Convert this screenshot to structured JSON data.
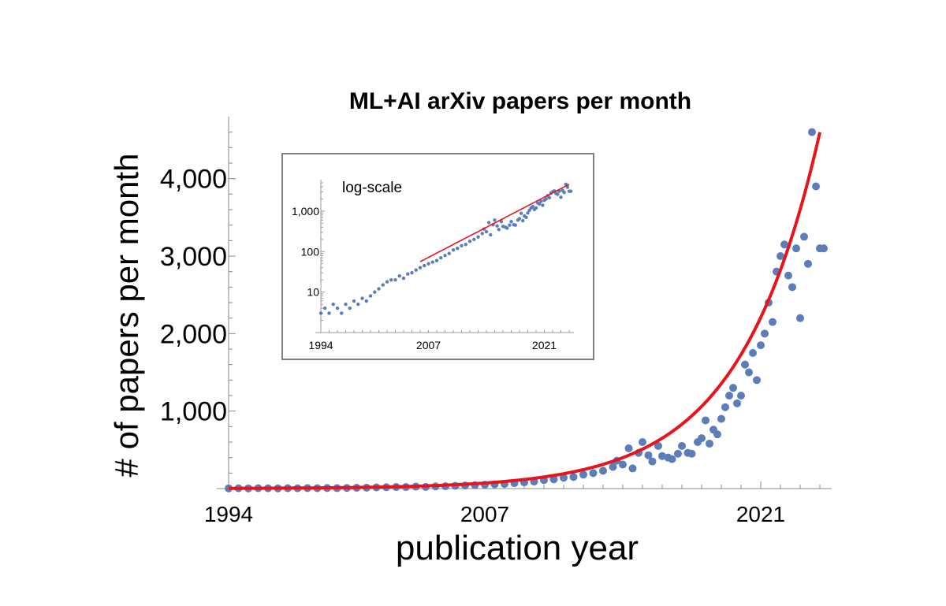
{
  "chart_data": [
    {
      "type": "scatter",
      "title": "ML+AI arXiv papers per month",
      "xlabel": "publication year",
      "ylabel": "# of papers per month",
      "xlim": [
        1994,
        2024
      ],
      "ylim": [
        0,
        4800
      ],
      "x_ticks": [
        {
          "value": 1994,
          "label": "1994"
        },
        {
          "value": 2007,
          "label": "2007"
        },
        {
          "value": 2021,
          "label": "2021"
        }
      ],
      "y_ticks": [
        {
          "value": 1000,
          "label": "1,000"
        },
        {
          "value": 2000,
          "label": "2,000"
        },
        {
          "value": 3000,
          "label": "3,000"
        },
        {
          "value": 4000,
          "label": "4,000"
        }
      ],
      "scale": "linear",
      "series": [
        {
          "name": "monthly papers",
          "color": "#5b7db8",
          "points": [
            [
              1994.0,
              3
            ],
            [
              1994.5,
              4
            ],
            [
              1995.0,
              3
            ],
            [
              1995.5,
              5
            ],
            [
              1996.0,
              4
            ],
            [
              1996.5,
              3
            ],
            [
              1997.0,
              5
            ],
            [
              1997.5,
              4
            ],
            [
              1998.0,
              6
            ],
            [
              1998.5,
              5
            ],
            [
              1999.0,
              7
            ],
            [
              1999.5,
              6
            ],
            [
              2000.0,
              8
            ],
            [
              2000.5,
              10
            ],
            [
              2001.0,
              12
            ],
            [
              2001.5,
              15
            ],
            [
              2002.0,
              18
            ],
            [
              2002.5,
              20
            ],
            [
              2003.0,
              20
            ],
            [
              2003.5,
              25
            ],
            [
              2004.0,
              22
            ],
            [
              2004.5,
              28
            ],
            [
              2005.0,
              30
            ],
            [
              2005.5,
              35
            ],
            [
              2006.0,
              40
            ],
            [
              2006.5,
              45
            ],
            [
              2007.0,
              50
            ],
            [
              2007.5,
              55
            ],
            [
              2008.0,
              60
            ],
            [
              2008.5,
              70
            ],
            [
              2009.0,
              80
            ],
            [
              2009.5,
              90
            ],
            [
              2010.0,
              110
            ],
            [
              2010.5,
              120
            ],
            [
              2011.0,
              140
            ],
            [
              2011.5,
              150
            ],
            [
              2012.0,
              180
            ],
            [
              2012.5,
              200
            ],
            [
              2013.0,
              230
            ],
            [
              2013.5,
              280
            ],
            [
              2013.7,
              360
            ],
            [
              2014.0,
              310
            ],
            [
              2014.3,
              520
            ],
            [
              2014.5,
              260
            ],
            [
              2014.8,
              460
            ],
            [
              2015.0,
              600
            ],
            [
              2015.3,
              430
            ],
            [
              2015.5,
              350
            ],
            [
              2015.8,
              550
            ],
            [
              2016.0,
              420
            ],
            [
              2016.3,
              400
            ],
            [
              2016.5,
              380
            ],
            [
              2016.8,
              450
            ],
            [
              2017.0,
              550
            ],
            [
              2017.3,
              460
            ],
            [
              2017.5,
              450
            ],
            [
              2017.8,
              600
            ],
            [
              2018.0,
              650
            ],
            [
              2018.2,
              880
            ],
            [
              2018.4,
              580
            ],
            [
              2018.6,
              760
            ],
            [
              2018.8,
              700
            ],
            [
              2019.0,
              900
            ],
            [
              2019.2,
              1050
            ],
            [
              2019.4,
              1200
            ],
            [
              2019.6,
              1300
            ],
            [
              2019.8,
              1100
            ],
            [
              2020.0,
              1200
            ],
            [
              2020.2,
              1600
            ],
            [
              2020.4,
              1500
            ],
            [
              2020.6,
              1750
            ],
            [
              2020.8,
              1400
            ],
            [
              2021.0,
              1850
            ],
            [
              2021.2,
              2000
            ],
            [
              2021.4,
              2400
            ],
            [
              2021.6,
              2150
            ],
            [
              2021.8,
              2800
            ],
            [
              2022.0,
              3000
            ],
            [
              2022.2,
              3150
            ],
            [
              2022.4,
              2750
            ],
            [
              2022.6,
              2600
            ],
            [
              2022.8,
              3100
            ],
            [
              2023.0,
              2200
            ],
            [
              2023.2,
              3250
            ],
            [
              2023.4,
              2900
            ],
            [
              2023.6,
              4600
            ],
            [
              2023.8,
              3900
            ],
            [
              2024.0,
              3100
            ],
            [
              2024.2,
              3100
            ]
          ]
        },
        {
          "name": "exponential fit",
          "color": "#e8141d",
          "fit": {
            "a": 3.0,
            "rate": 0.2445,
            "x0": 1994
          }
        }
      ]
    },
    {
      "type": "scatter",
      "title": "log-scale",
      "scale": "log",
      "xlim": [
        1994,
        2024
      ],
      "ylim": [
        1,
        5000
      ],
      "x_ticks": [
        {
          "value": 1994,
          "label": "1994"
        },
        {
          "value": 2007,
          "label": "2007"
        },
        {
          "value": 2021,
          "label": "2021"
        }
      ],
      "y_ticks": [
        {
          "value": 10,
          "label": "10"
        },
        {
          "value": 100,
          "label": "100"
        },
        {
          "value": 1000,
          "label": "1,000"
        }
      ],
      "fit_range": [
        2006,
        2024
      ]
    }
  ]
}
